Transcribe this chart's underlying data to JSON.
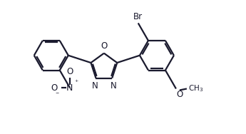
{
  "background_color": "#ffffff",
  "line_color": "#1a1a2e",
  "line_width": 1.6,
  "dbo": 0.055,
  "fig_width": 3.45,
  "fig_height": 1.88,
  "font_size": 8.5,
  "xlim": [
    -4.2,
    5.8
  ],
  "ylim": [
    -2.8,
    2.8
  ]
}
